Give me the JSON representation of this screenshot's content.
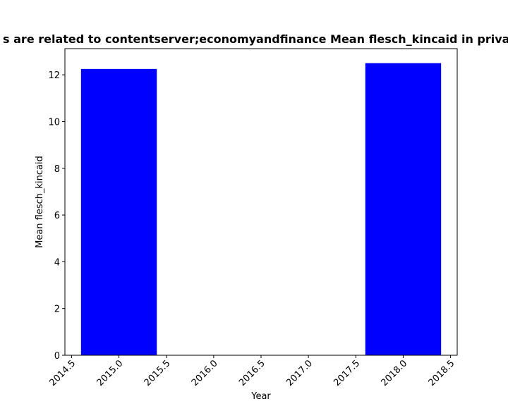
{
  "chart_data": {
    "type": "bar",
    "title": "s are related to contentserver;economyandfinance Mean flesch_kincaid in privac",
    "xlabel": "Year",
    "ylabel": "Mean flesch_kincaid",
    "x": [
      2015,
      2018
    ],
    "values": [
      12.25,
      12.5
    ],
    "bar_width": 0.8,
    "bar_color": "#0000ff",
    "xlim": [
      2014.43,
      2018.57
    ],
    "ylim": [
      0,
      13.12
    ],
    "xticks": [
      "2014.5",
      "2015.0",
      "2015.5",
      "2016.0",
      "2016.5",
      "2017.0",
      "2017.5",
      "2018.0",
      "2018.5"
    ],
    "yticks": [
      "0",
      "2",
      "4",
      "6",
      "8",
      "10",
      "12"
    ],
    "grid": false,
    "legend": "none"
  }
}
